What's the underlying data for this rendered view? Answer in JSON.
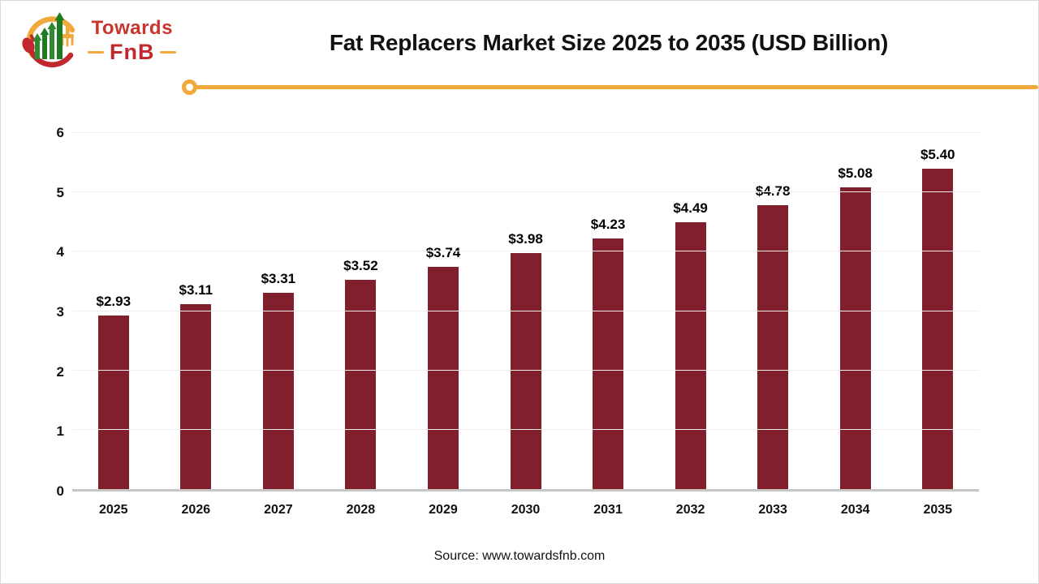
{
  "header": {
    "logo": {
      "brand_line1": "Towards",
      "brand_line2": "FnB"
    },
    "title": "Fat Replacers Market Size 2025 to 2035 (USD Billion)"
  },
  "chart_data": {
    "type": "bar",
    "title": "Fat Replacers Market Size 2025 to 2035 (USD Billion)",
    "categories": [
      "2025",
      "2026",
      "2027",
      "2028",
      "2029",
      "2030",
      "2031",
      "2032",
      "2033",
      "2034",
      "2035"
    ],
    "values": [
      2.93,
      3.11,
      3.31,
      3.52,
      3.74,
      3.98,
      4.23,
      4.49,
      4.78,
      5.08,
      5.4
    ],
    "value_labels": [
      "$2.93",
      "$3.11",
      "$3.31",
      "$3.52",
      "$3.74",
      "$3.98",
      "$4.23",
      "$4.49",
      "$4.78",
      "$5.08",
      "$5.40"
    ],
    "xlabel": "",
    "ylabel": "",
    "ylim": [
      0,
      6
    ],
    "yticks": [
      0,
      1,
      2,
      3,
      4,
      5,
      6
    ],
    "grid": true,
    "legend_position": "none",
    "bar_color": "#811f2d"
  },
  "footer": {
    "source": "Source: www.towardsfnb.com"
  },
  "colors": {
    "bar": "#811f2d",
    "accent_line": "#f2a93b",
    "logo_red": "#c1272d",
    "logo_green": "#2e8b2e",
    "logo_yellow": "#f2a93b",
    "gridline": "#efefef",
    "axis_line": "#c6c6c6",
    "text": "#111111",
    "background": "#ffffff"
  }
}
